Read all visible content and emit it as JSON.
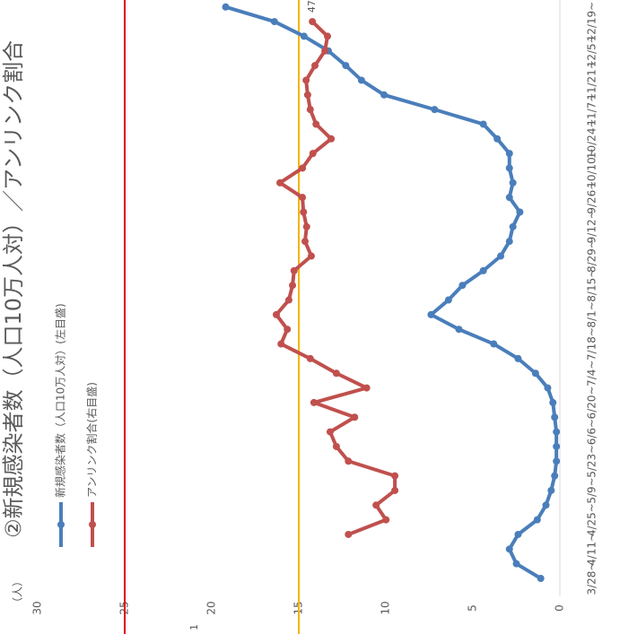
{
  "chart_data": {
    "type": "line",
    "title": "②新規感染者数（人口10万人対）／アンリンク割合",
    "ylabel": "（人）",
    "note": "1",
    "categories": [
      "3/28~",
      null,
      "4/11~",
      null,
      "4/25~",
      null,
      "5/9~",
      null,
      "5/23~",
      null,
      "6/6~",
      null,
      "6/20~",
      null,
      "7/4~",
      null,
      "7/18~",
      null,
      "8/1~",
      null,
      "8/15~",
      null,
      "8/29~",
      null,
      "9/12~",
      null,
      "9/26~",
      null,
      "10/10~",
      null,
      "10/24~",
      null,
      "11/7~",
      null,
      "11/21~",
      null,
      "12/5~",
      null,
      "12/19~",
      null
    ],
    "ylim": [
      0,
      30
    ],
    "yticks": [
      0,
      5,
      10,
      15,
      20,
      25,
      30
    ],
    "y2lim": [
      0,
      100
    ],
    "reference_lines": [
      {
        "value": 25,
        "color": "#e0000b"
      },
      {
        "value": 15,
        "color": "#f5b400"
      }
    ],
    "series": [
      {
        "name": "新規感染者数（人口10万人対）(左目盛)",
        "color": "#4a7ebb",
        "values": [
          1.1,
          2.5,
          2.9,
          2.4,
          1.3,
          0.8,
          0.5,
          0.3,
          0.2,
          0.2,
          0.2,
          0.3,
          0.4,
          0.7,
          1.4,
          2.4,
          3.8,
          5.8,
          7.4,
          6.4,
          5.6,
          4.4,
          3.4,
          2.9,
          2.7,
          2.3,
          2.9,
          2.7,
          2.9,
          2.9,
          3.6,
          4.4,
          7.2,
          10.1,
          11.4,
          12.3,
          13.3,
          14.7,
          16.4,
          19.2
        ],
        "value_labels": [
          null,
          null,
          null,
          null,
          null,
          null,
          null,
          null,
          null,
          null,
          null,
          null,
          null,
          null,
          null,
          null,
          null,
          null,
          null,
          null,
          null,
          null,
          null,
          null,
          null,
          null,
          null,
          null,
          null,
          null,
          null,
          null,
          null,
          null,
          null,
          null,
          null,
          null,
          null,
          "19.2"
        ]
      },
      {
        "name": "アンリンク割合(右目盛)",
        "color": "#c0504d",
        "axis": "y2",
        "values": [
          null,
          null,
          null,
          40.5,
          33.3,
          35.2,
          31.6,
          31.6,
          40.5,
          42.8,
          44.0,
          39.3,
          47.1,
          37.0,
          42.8,
          47.8,
          53.4,
          52.2,
          54.3,
          51.9,
          51.2,
          50.9,
          47.6,
          48.8,
          48.5,
          49.1,
          49.3,
          53.6,
          49.3,
          47.3,
          43.8,
          46.7,
          47.8,
          48.3,
          48.6,
          46.9,
          45.0,
          44.5,
          47.4,
          null
        ],
        "value_labels": [
          null,
          null,
          null,
          null,
          null,
          null,
          null,
          null,
          null,
          null,
          null,
          null,
          null,
          null,
          null,
          null,
          null,
          null,
          null,
          null,
          null,
          null,
          null,
          null,
          null,
          null,
          null,
          null,
          null,
          null,
          null,
          null,
          null,
          null,
          null,
          null,
          null,
          null,
          "47",
          null
        ]
      }
    ]
  }
}
